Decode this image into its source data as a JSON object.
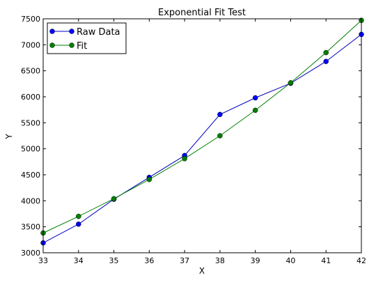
{
  "chart_data": {
    "type": "line",
    "title": "Exponential Fit Test",
    "xlabel": "X",
    "ylabel": "Y",
    "xlim": [
      33,
      42
    ],
    "ylim": [
      3000,
      7500
    ],
    "xticks": [
      "33",
      "34",
      "35",
      "36",
      "37",
      "38",
      "39",
      "40",
      "41",
      "42"
    ],
    "yticks": [
      "3000",
      "3500",
      "4000",
      "4500",
      "5000",
      "5500",
      "6000",
      "6500",
      "7000",
      "7500"
    ],
    "grid": false,
    "legend": "top-left",
    "x": [
      33,
      34,
      35,
      36,
      37,
      38,
      39,
      40,
      41,
      42
    ],
    "series": [
      {
        "name": "Raw Data",
        "color": "#0000bf",
        "marker_color": "#0000ff",
        "values": [
          3190,
          3550,
          4030,
          4450,
          4870,
          5660,
          5980,
          6260,
          6680,
          7200
        ]
      },
      {
        "name": "Fit",
        "color": "#007f00",
        "marker_color": "#008000",
        "values": [
          3380,
          3700,
          4040,
          4410,
          4810,
          5250,
          5740,
          6270,
          6850,
          7470
        ]
      }
    ]
  }
}
